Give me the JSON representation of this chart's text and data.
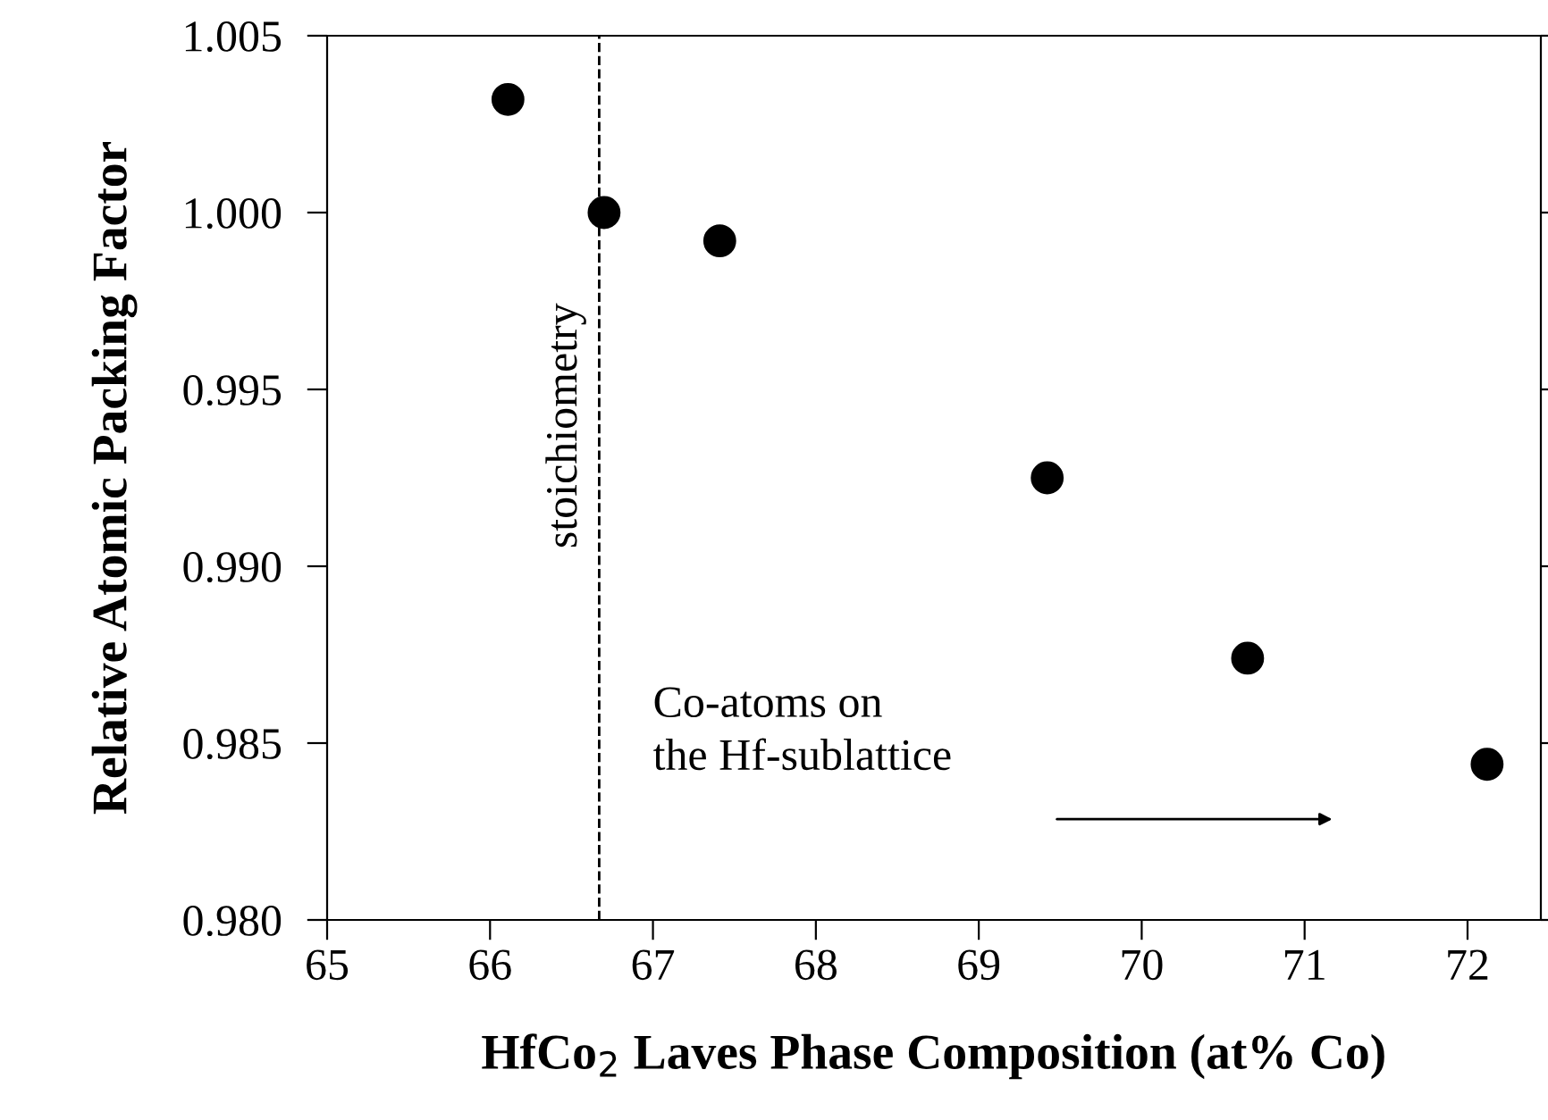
{
  "chart_data": {
    "type": "scatter",
    "xlabel": "HfCo$_{2}$ Laves Phase Composition (at% Co)",
    "ylabel": "Relative Atomic Packing Factor",
    "x": [
      66.11,
      66.7,
      67.41,
      69.42,
      70.65,
      72.12
    ],
    "series": [
      {
        "color": "#000000",
        "values": [
          1.0032,
          1.0,
          0.9992,
          0.9925,
          0.9874,
          0.9844
        ]
      }
    ],
    "xlim": [
      65,
      72.45
    ],
    "xticks": [
      65,
      66,
      67,
      68,
      69,
      70,
      71,
      72
    ],
    "ylim": [
      0.98,
      1.005
    ],
    "yticks": [
      {
        "value": 0.98,
        "label": "0.980"
      },
      {
        "value": 0.985,
        "label": "0.985"
      },
      {
        "value": 0.99,
        "label": "0.990"
      },
      {
        "value": 0.995,
        "label": "0.995"
      },
      {
        "value": 1.0,
        "label": "1.000"
      },
      {
        "value": 1.005,
        "label": "1.005"
      }
    ],
    "ref_lines": [
      {
        "axis": "x",
        "value": 66.67,
        "label": "stoichiometry",
        "color": "#000000",
        "line_style": "dashed"
      }
    ],
    "annotations": [
      "Co-atoms on\nthe Hf-sublattice"
    ],
    "marker": "circle",
    "grid": false,
    "legend": false
  }
}
